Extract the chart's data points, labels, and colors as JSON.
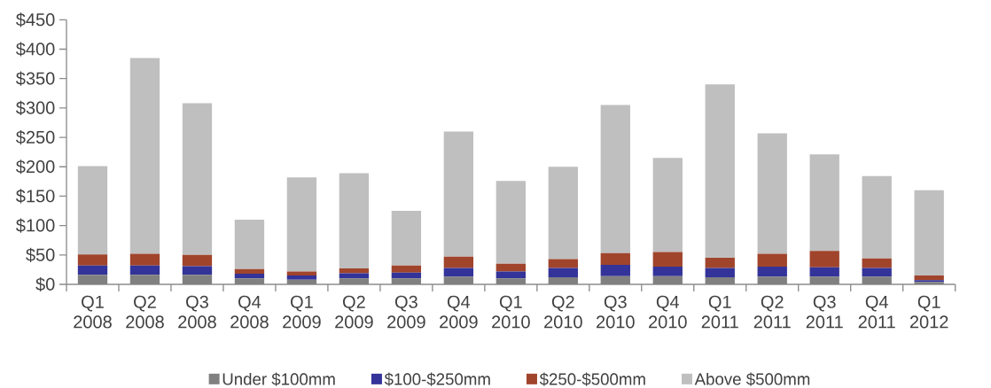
{
  "chart_data": {
    "type": "bar",
    "stacked": true,
    "categories": [
      "Q1 2008",
      "Q2 2008",
      "Q3 2008",
      "Q4 2008",
      "Q1 2009",
      "Q2 2009",
      "Q3 2009",
      "Q4 2009",
      "Q1 2010",
      "Q2 2010",
      "Q3 2010",
      "Q4 2010",
      "Q1 2011",
      "Q2 2011",
      "Q3 2011",
      "Q4 2011",
      "Q1 2012"
    ],
    "series": [
      {
        "name": "Under $100mm",
        "color": "#808080",
        "values": [
          16,
          16,
          16,
          10,
          8,
          10,
          10,
          13,
          10,
          12,
          14,
          14,
          12,
          13,
          13,
          13,
          4
        ]
      },
      {
        "name": "$100-$250mm",
        "color": "#333399",
        "values": [
          16,
          16,
          15,
          8,
          7,
          9,
          10,
          15,
          12,
          16,
          19,
          16,
          16,
          17,
          16,
          15,
          3
        ]
      },
      {
        "name": "$250-$500mm",
        "color": "#a0442c",
        "values": [
          19,
          20,
          19,
          8,
          7,
          8,
          12,
          19,
          13,
          15,
          20,
          25,
          17,
          22,
          28,
          16,
          8
        ]
      },
      {
        "name": "Above $500mm",
        "color": "#bfbfbf",
        "values": [
          150,
          333,
          258,
          84,
          160,
          162,
          93,
          213,
          141,
          157,
          252,
          160,
          295,
          205,
          164,
          140,
          145
        ]
      }
    ],
    "ylim": [
      0,
      450
    ],
    "yticks": [
      {
        "value": 0,
        "label": "$0"
      },
      {
        "value": 50,
        "label": "$50"
      },
      {
        "value": 100,
        "label": "$100"
      },
      {
        "value": 150,
        "label": "$150"
      },
      {
        "value": 200,
        "label": "$200"
      },
      {
        "value": 250,
        "label": "$250"
      },
      {
        "value": 300,
        "label": "$300"
      },
      {
        "value": 350,
        "label": "$350"
      },
      {
        "value": 400,
        "label": "$400"
      },
      {
        "value": 450,
        "label": "$450"
      }
    ],
    "grid": false,
    "legend": "bottom"
  }
}
